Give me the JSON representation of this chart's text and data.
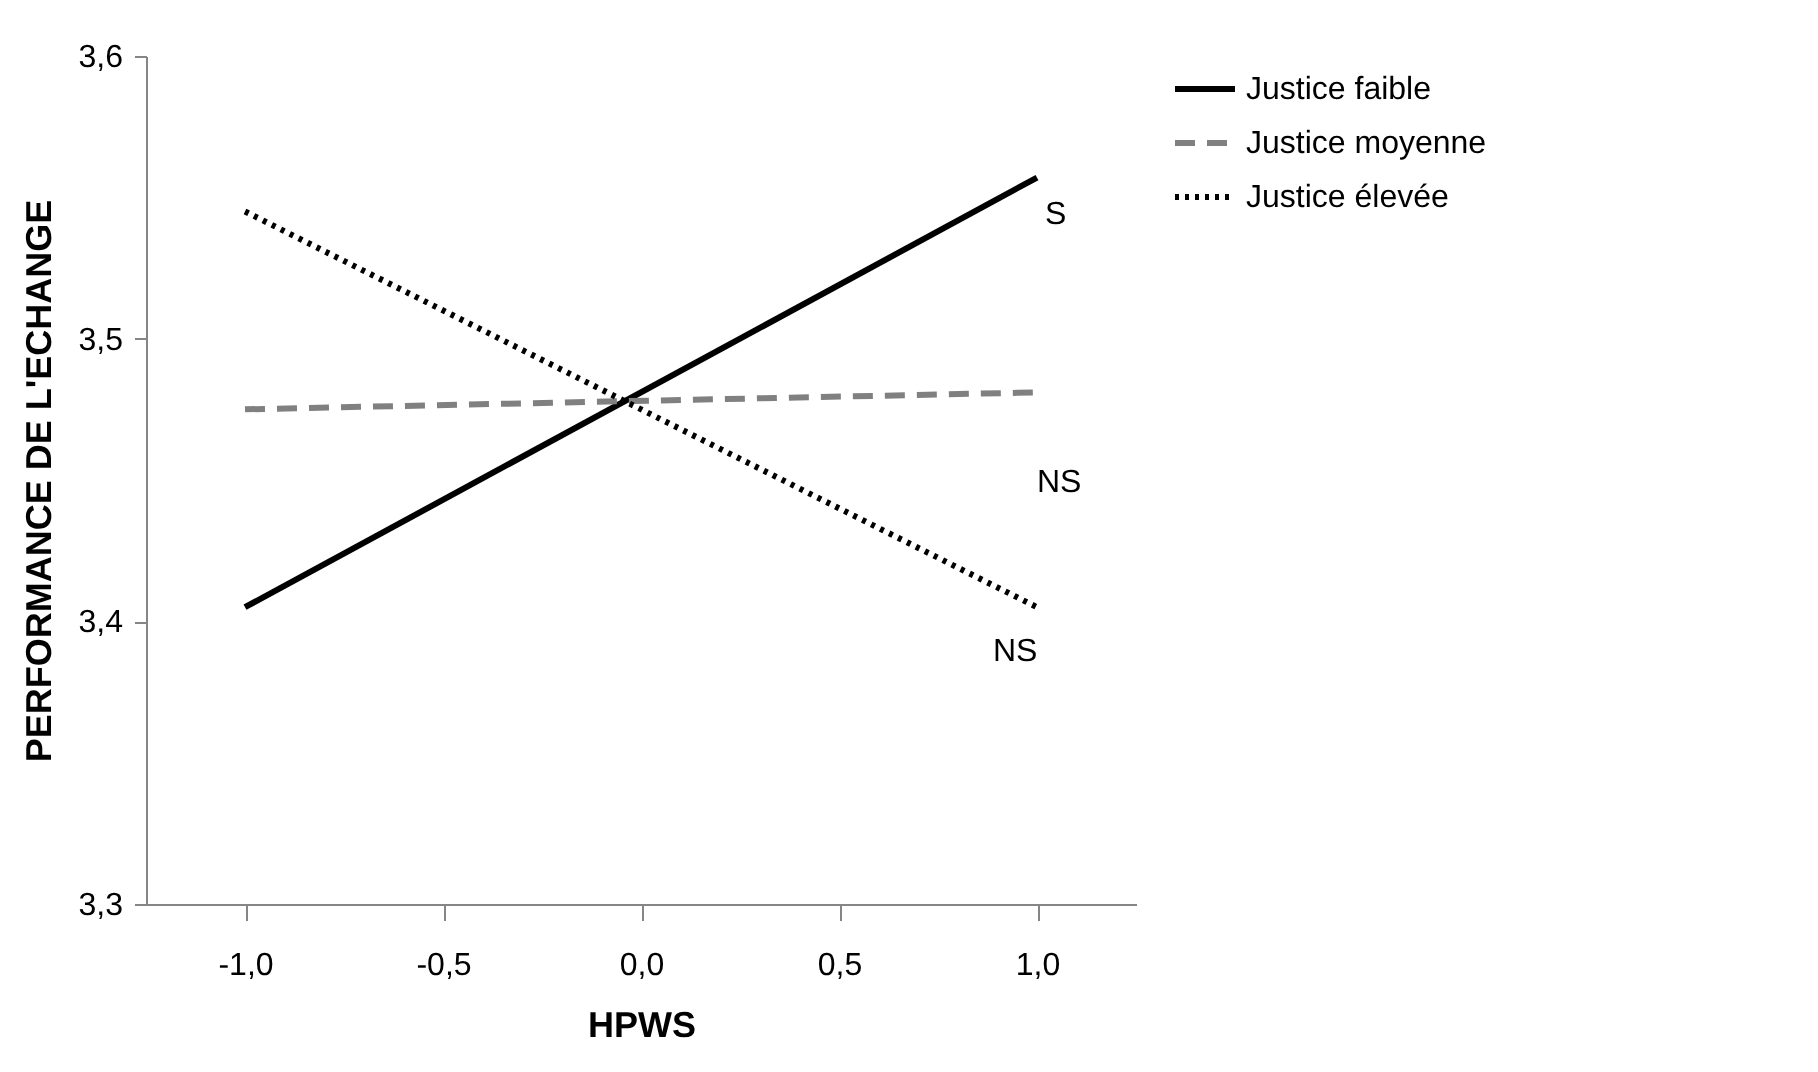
{
  "chart_data": {
    "type": "line",
    "xlabel": "HPWS",
    "ylabel": "PERFORMANCE DE L'ECHANGE",
    "categories": [
      "-1,0",
      "-0,5",
      "0,0",
      "0,5",
      "1,0"
    ],
    "series": [
      {
        "name": "Justice faible",
        "color": "#000000",
        "line_style": "solid",
        "values": [
          3.405,
          null,
          null,
          null,
          3.557
        ]
      },
      {
        "name": "Justice moyenne",
        "color": "#808080",
        "line_style": "dashed",
        "values": [
          3.475,
          null,
          null,
          null,
          3.481
        ]
      },
      {
        "name": "Justice élevée",
        "color": "#000000",
        "line_style": "dotted",
        "values": [
          3.545,
          null,
          null,
          null,
          3.405
        ]
      }
    ],
    "ylim": [
      3.3,
      3.6
    ],
    "yticks": [
      {
        "value": 3.3,
        "label": "3,3"
      },
      {
        "value": 3.4,
        "label": "3,4"
      },
      {
        "value": 3.5,
        "label": "3,5"
      },
      {
        "value": 3.6,
        "label": "3,6"
      }
    ],
    "annotations": [
      "S",
      "NS",
      "NS"
    ],
    "grid": false,
    "legend": "right",
    "marker": "none"
  }
}
